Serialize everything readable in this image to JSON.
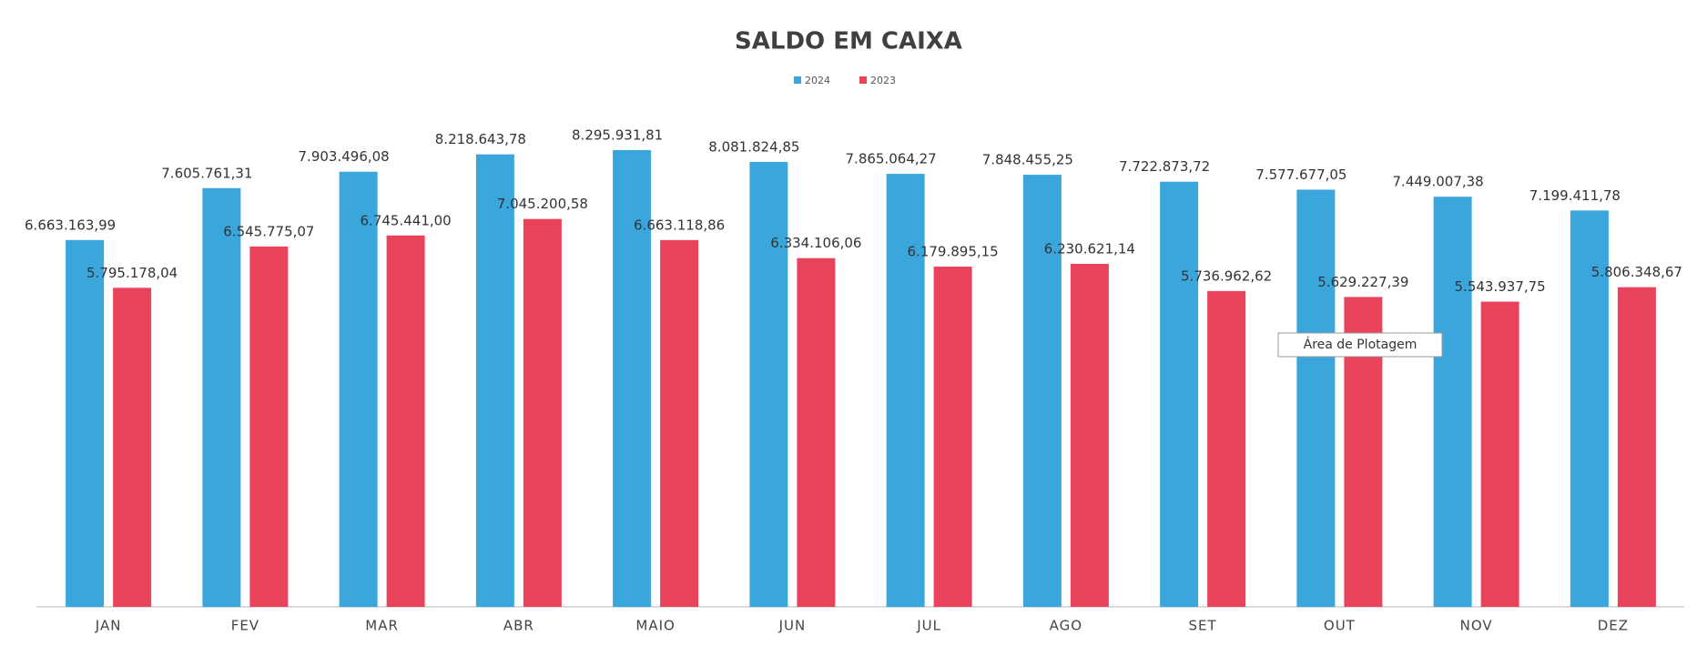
{
  "chart_data": {
    "type": "bar",
    "title": "SALDO EM CAIXA",
    "categories": [
      "JAN",
      "FEV",
      "MAR",
      "ABR",
      "MAIO",
      "JUN",
      "JUL",
      "AGO",
      "SET",
      "OUT",
      "NOV",
      "DEZ"
    ],
    "series": [
      {
        "name": "2024",
        "color": "#3aa6dc",
        "values": [
          6663163.99,
          7605761.31,
          7903496.08,
          8218643.78,
          8295931.81,
          8081824.85,
          7865064.27,
          7848455.25,
          7722873.72,
          7577677.05,
          7449007.38,
          7199411.78
        ],
        "value_labels": [
          "6.663.163,99",
          "7.605.761,31",
          "7.903.496,08",
          "8.218.643,78",
          "8.295.931,81",
          "8.081.824,85",
          "7.865.064,27",
          "7.848.455,25",
          "7.722.873,72",
          "7.577.677,05",
          "7.449.007,38",
          "7.199.411,78"
        ]
      },
      {
        "name": "2023",
        "color": "#e8435a",
        "values": [
          5795178.04,
          6545775.07,
          6745441.0,
          7045200.58,
          6663118.86,
          6334106.06,
          6179895.15,
          6230621.14,
          5736962.62,
          5629227.39,
          5543937.75,
          5806348.67
        ],
        "value_labels": [
          "5.795.178,04",
          "6.545.775,07",
          "6.745.441,00",
          "7.045.200,58",
          "6.663.118,86",
          "6.334.106,06",
          "6.179.895,15",
          "6.230.621,14",
          "5.736.962,62",
          "5.629.227,39",
          "5.543.937,75",
          "5.806.348,67"
        ]
      }
    ],
    "legend": "top",
    "tooltip": "Área de Plotagem"
  }
}
